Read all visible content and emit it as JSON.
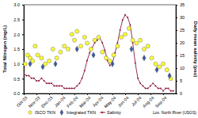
{
  "chart_data": {
    "type": "scatter",
    "y_label": "Total Nitrogen (mg/L)",
    "y2_label": "Daily mean salinity (psu)",
    "annotation": "Lox. North River (USGS)",
    "xlim": [
      0,
      12
    ],
    "xticks": [
      {
        "value": 0,
        "label": "Oct-03"
      },
      {
        "value": 1,
        "label": "Nov-03"
      },
      {
        "value": 2,
        "label": "Dec-03"
      },
      {
        "value": 3,
        "label": "Jan-04"
      },
      {
        "value": 4,
        "label": "Feb-04"
      },
      {
        "value": 5,
        "label": "Mar-04"
      },
      {
        "value": 6,
        "label": "Apr-04"
      },
      {
        "value": 7,
        "label": "May-04"
      },
      {
        "value": 8,
        "label": "Jun-04"
      },
      {
        "value": 9,
        "label": "Jul-04"
      },
      {
        "value": 10,
        "label": "Aug-04"
      },
      {
        "value": 11,
        "label": "Sep-04"
      }
    ],
    "ylim": [
      0,
      3
    ],
    "yticks": [
      {
        "value": 0,
        "label": "0.0"
      },
      {
        "value": 0.5,
        "label": "0.5"
      },
      {
        "value": 1,
        "label": "1.0"
      },
      {
        "value": 1.5,
        "label": "1.5"
      },
      {
        "value": 2,
        "label": "2.0"
      },
      {
        "value": 2.5,
        "label": "2.5"
      },
      {
        "value": 3,
        "label": "3.0"
      }
    ],
    "y2lim": [
      0,
      35
    ],
    "y2ticks": [
      0,
      5,
      10,
      15,
      20,
      25,
      30,
      35
    ],
    "legend": "bottom",
    "series": [
      {
        "name": "ISCO TKN",
        "type": "scatter",
        "color": "#ffff33",
        "marker": "circle",
        "line_style": "none",
        "x": [
          0.1,
          0.3,
          0.5,
          0.7,
          0.9,
          1.1,
          1.4,
          1.7,
          2.0,
          2.3,
          2.6,
          2.9,
          3.2,
          3.5,
          3.8,
          4.0,
          4.2,
          4.5,
          4.8,
          5.0,
          5.3,
          5.6,
          5.9,
          6.2,
          6.5,
          6.8,
          7.1,
          7.4,
          7.7,
          8.0,
          8.3,
          8.6,
          8.9,
          9.2,
          9.5,
          9.8,
          10.1,
          10.4,
          10.7,
          11.0,
          11.3,
          11.6
        ],
        "values": [
          1.0,
          1.3,
          1.2,
          1.1,
          1.6,
          1.3,
          1.2,
          1.0,
          1.1,
          1.5,
          1.2,
          1.4,
          1.6,
          1.5,
          2.0,
          1.8,
          2.1,
          1.6,
          1.9,
          1.7,
          1.5,
          1.8,
          1.9,
          1.4,
          1.2,
          1.1,
          1.3,
          1.6,
          1.9,
          2.0,
          2.2,
          1.8,
          1.7,
          1.8,
          1.5,
          1.6,
          1.2,
          1.0,
          0.9,
          1.0,
          0.8,
          0.5
        ]
      },
      {
        "name": "Integrated TKN",
        "type": "scatter",
        "color": "#3a5ba0",
        "marker": "diamond",
        "line_style": "none",
        "x": [
          0.5,
          1.5,
          2.5,
          4.2,
          5.5,
          7.0,
          8.5,
          9.5,
          10.5,
          11.5
        ],
        "values": [
          1.0,
          0.9,
          1.0,
          1.5,
          1.3,
          1.0,
          1.5,
          1.2,
          0.8,
          0.6
        ]
      },
      {
        "name": "Salinity",
        "type": "line",
        "axis": "y2",
        "color": "#8b1a3a",
        "marker": "circle",
        "line_style": "solid",
        "x": [
          0,
          0.2,
          0.4,
          0.6,
          0.8,
          1,
          1.2,
          1.4,
          1.6,
          1.8,
          2,
          2.2,
          2.4,
          2.6,
          2.8,
          3,
          3.2,
          3.4,
          3.6,
          3.8,
          4,
          4.2,
          4.4,
          4.6,
          4.8,
          5,
          5.2,
          5.4,
          5.6,
          5.8,
          6,
          6.2,
          6.4,
          6.6,
          6.8,
          7,
          7.2,
          7.4,
          7.6,
          7.8,
          8,
          8.2,
          8.4,
          8.6,
          8.8,
          9,
          9.2,
          9.4,
          9.6,
          9.8,
          10,
          10.2,
          10.4,
          10.6,
          10.8,
          11,
          11.2,
          11.4,
          11.6,
          11.8
        ],
        "values": [
          8,
          7,
          7,
          6,
          6,
          5,
          5,
          6,
          5,
          4,
          4,
          4,
          3,
          3,
          3,
          3,
          2,
          2,
          2,
          2,
          2,
          3,
          4,
          6,
          9,
          13,
          16,
          18,
          20,
          21,
          22,
          20,
          17,
          13,
          11,
          12,
          16,
          20,
          25,
          29,
          31,
          30,
          27,
          20,
          12,
          6,
          4,
          3,
          2,
          2,
          3,
          4,
          3,
          2,
          2,
          1,
          2,
          2,
          1,
          1
        ]
      }
    ]
  }
}
